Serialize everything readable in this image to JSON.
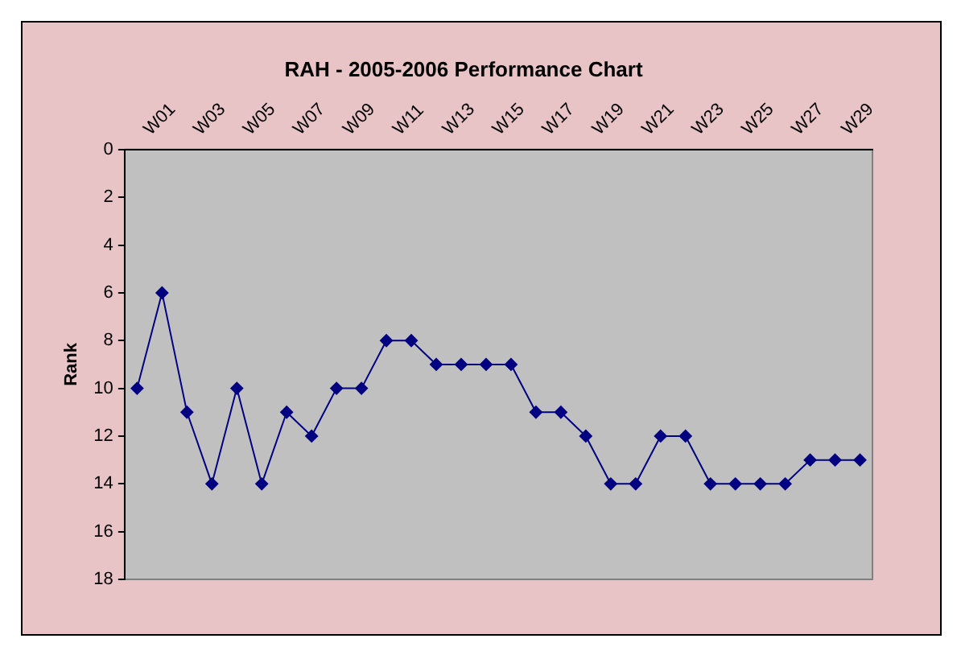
{
  "chart_data": {
    "type": "line",
    "title": "RAH - 2005-2006 Performance Chart",
    "ylabel": "Rank",
    "categories": [
      null,
      "W01",
      null,
      "W03",
      null,
      "W05",
      null,
      "W07",
      null,
      "W09",
      null,
      "W11",
      null,
      "W13",
      null,
      "W15",
      null,
      "W17",
      null,
      "W19",
      null,
      "W21",
      null,
      "W23",
      null,
      "W25",
      null,
      "W27",
      null,
      "W29"
    ],
    "series": [
      {
        "color": "#000080",
        "values": [
          10,
          6,
          11,
          14,
          10,
          14,
          11,
          12,
          10,
          10,
          8,
          8,
          9,
          9,
          9,
          9,
          11,
          11,
          12,
          14,
          14,
          12,
          12,
          14,
          14,
          14,
          14,
          13,
          13,
          13
        ]
      }
    ],
    "ylim": [
      18,
      0
    ],
    "yticks": [
      0,
      2,
      4,
      6,
      8,
      10,
      12,
      14,
      16,
      18
    ],
    "grid": false,
    "legend": false,
    "marker": "diamond",
    "line_style": "solid"
  }
}
